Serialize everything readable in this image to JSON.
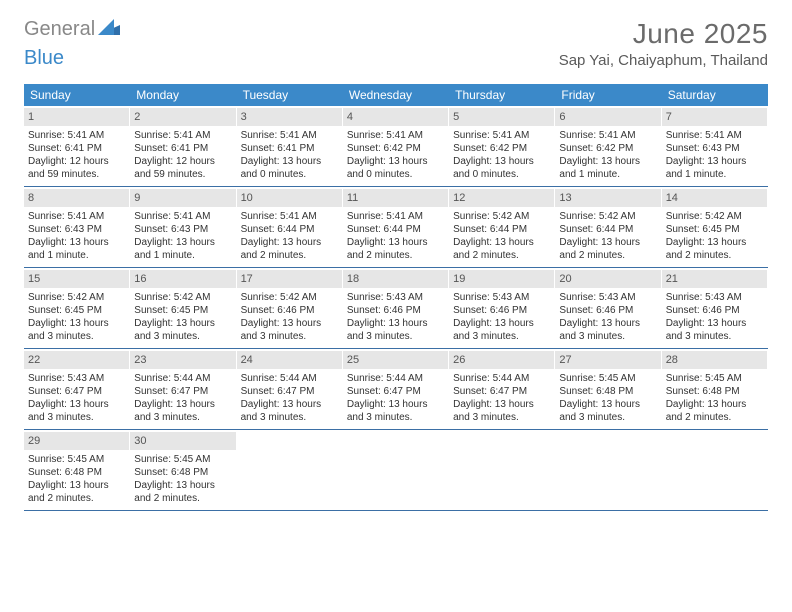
{
  "logo": {
    "text1": "General",
    "text2": "Blue"
  },
  "title": "June 2025",
  "location": "Sap Yai, Chaiyaphum, Thailand",
  "colors": {
    "header_bg": "#3b89c9",
    "header_text": "#ffffff",
    "week_border": "#3b6fa5",
    "daynum_bg": "#e6e6e6",
    "body_text": "#333333",
    "title_text": "#6b6b6b"
  },
  "dow": [
    "Sunday",
    "Monday",
    "Tuesday",
    "Wednesday",
    "Thursday",
    "Friday",
    "Saturday"
  ],
  "days": [
    {
      "n": "1",
      "sr": "5:41 AM",
      "ss": "6:41 PM",
      "dl": "12 hours and 59 minutes."
    },
    {
      "n": "2",
      "sr": "5:41 AM",
      "ss": "6:41 PM",
      "dl": "12 hours and 59 minutes."
    },
    {
      "n": "3",
      "sr": "5:41 AM",
      "ss": "6:41 PM",
      "dl": "13 hours and 0 minutes."
    },
    {
      "n": "4",
      "sr": "5:41 AM",
      "ss": "6:42 PM",
      "dl": "13 hours and 0 minutes."
    },
    {
      "n": "5",
      "sr": "5:41 AM",
      "ss": "6:42 PM",
      "dl": "13 hours and 0 minutes."
    },
    {
      "n": "6",
      "sr": "5:41 AM",
      "ss": "6:42 PM",
      "dl": "13 hours and 1 minute."
    },
    {
      "n": "7",
      "sr": "5:41 AM",
      "ss": "6:43 PM",
      "dl": "13 hours and 1 minute."
    },
    {
      "n": "8",
      "sr": "5:41 AM",
      "ss": "6:43 PM",
      "dl": "13 hours and 1 minute."
    },
    {
      "n": "9",
      "sr": "5:41 AM",
      "ss": "6:43 PM",
      "dl": "13 hours and 1 minute."
    },
    {
      "n": "10",
      "sr": "5:41 AM",
      "ss": "6:44 PM",
      "dl": "13 hours and 2 minutes."
    },
    {
      "n": "11",
      "sr": "5:41 AM",
      "ss": "6:44 PM",
      "dl": "13 hours and 2 minutes."
    },
    {
      "n": "12",
      "sr": "5:42 AM",
      "ss": "6:44 PM",
      "dl": "13 hours and 2 minutes."
    },
    {
      "n": "13",
      "sr": "5:42 AM",
      "ss": "6:44 PM",
      "dl": "13 hours and 2 minutes."
    },
    {
      "n": "14",
      "sr": "5:42 AM",
      "ss": "6:45 PM",
      "dl": "13 hours and 2 minutes."
    },
    {
      "n": "15",
      "sr": "5:42 AM",
      "ss": "6:45 PM",
      "dl": "13 hours and 3 minutes."
    },
    {
      "n": "16",
      "sr": "5:42 AM",
      "ss": "6:45 PM",
      "dl": "13 hours and 3 minutes."
    },
    {
      "n": "17",
      "sr": "5:42 AM",
      "ss": "6:46 PM",
      "dl": "13 hours and 3 minutes."
    },
    {
      "n": "18",
      "sr": "5:43 AM",
      "ss": "6:46 PM",
      "dl": "13 hours and 3 minutes."
    },
    {
      "n": "19",
      "sr": "5:43 AM",
      "ss": "6:46 PM",
      "dl": "13 hours and 3 minutes."
    },
    {
      "n": "20",
      "sr": "5:43 AM",
      "ss": "6:46 PM",
      "dl": "13 hours and 3 minutes."
    },
    {
      "n": "21",
      "sr": "5:43 AM",
      "ss": "6:46 PM",
      "dl": "13 hours and 3 minutes."
    },
    {
      "n": "22",
      "sr": "5:43 AM",
      "ss": "6:47 PM",
      "dl": "13 hours and 3 minutes."
    },
    {
      "n": "23",
      "sr": "5:44 AM",
      "ss": "6:47 PM",
      "dl": "13 hours and 3 minutes."
    },
    {
      "n": "24",
      "sr": "5:44 AM",
      "ss": "6:47 PM",
      "dl": "13 hours and 3 minutes."
    },
    {
      "n": "25",
      "sr": "5:44 AM",
      "ss": "6:47 PM",
      "dl": "13 hours and 3 minutes."
    },
    {
      "n": "26",
      "sr": "5:44 AM",
      "ss": "6:47 PM",
      "dl": "13 hours and 3 minutes."
    },
    {
      "n": "27",
      "sr": "5:45 AM",
      "ss": "6:48 PM",
      "dl": "13 hours and 3 minutes."
    },
    {
      "n": "28",
      "sr": "5:45 AM",
      "ss": "6:48 PM",
      "dl": "13 hours and 2 minutes."
    },
    {
      "n": "29",
      "sr": "5:45 AM",
      "ss": "6:48 PM",
      "dl": "13 hours and 2 minutes."
    },
    {
      "n": "30",
      "sr": "5:45 AM",
      "ss": "6:48 PM",
      "dl": "13 hours and 2 minutes."
    }
  ],
  "labels": {
    "sunrise": "Sunrise:",
    "sunset": "Sunset:",
    "daylight": "Daylight:"
  }
}
